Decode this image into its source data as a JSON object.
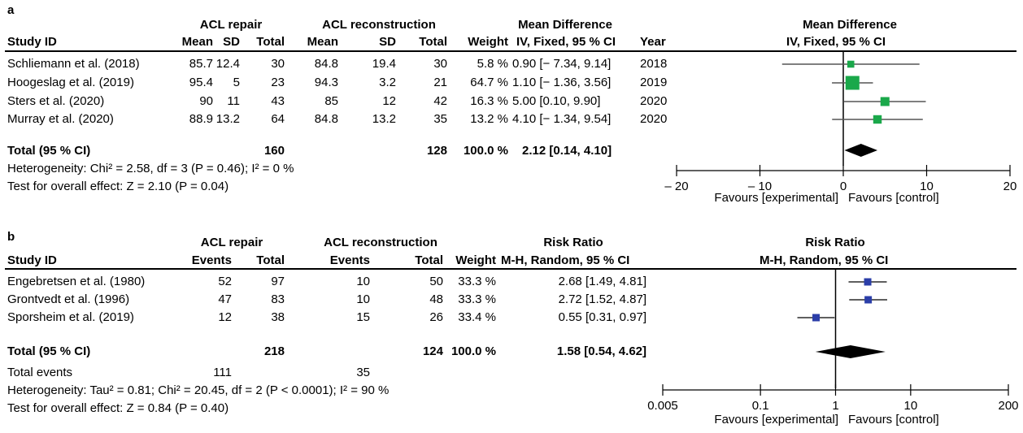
{
  "chart_data": [
    {
      "type": "forest",
      "panel_label": "a",
      "group_headers": [
        "ACL repair",
        "ACL reconstruction",
        "Mean Difference",
        "Mean Difference"
      ],
      "stat_sub": "IV, Fixed, 95 % CI",
      "columns": [
        "Study ID",
        "Mean",
        "SD",
        "Total",
        "Mean",
        "SD",
        "Total",
        "Weight",
        "IV, Fixed, 95 % CI",
        "Year"
      ],
      "studies": [
        {
          "name": "Schliemann et al. (2018)",
          "m1": "85.7",
          "sd1": "12.4",
          "n1": "30",
          "m2": "84.8",
          "sd2": "19.4",
          "n2": "30",
          "weight": "5.8 %",
          "ci_text": "0.90 [− 7.34, 9.14]",
          "year": "2018",
          "est": 0.9,
          "lo": -7.34,
          "hi": 9.14,
          "w": 5.8
        },
        {
          "name": "Hoogeslag et al. (2019)",
          "m1": "95.4",
          "sd1": "5",
          "n1": "23",
          "m2": "94.3",
          "sd2": "3.2",
          "n2": "21",
          "weight": "64.7 %",
          "ci_text": "1.10 [− 1.36, 3.56]",
          "year": "2019",
          "est": 1.1,
          "lo": -1.36,
          "hi": 3.56,
          "w": 64.7
        },
        {
          "name": "Sters et al. (2020)",
          "m1": "90",
          "sd1": "11",
          "n1": "43",
          "m2": "85",
          "sd2": "12",
          "n2": "42",
          "weight": "16.3 %",
          "ci_text": "5.00 [0.10, 9.90]",
          "year": "2020",
          "est": 5.0,
          "lo": 0.1,
          "hi": 9.9,
          "w": 16.3
        },
        {
          "name": "Murray et al. (2020)",
          "m1": "88.9",
          "sd1": "13.2",
          "n1": "64",
          "m2": "84.8",
          "sd2": "13.2",
          "n2": "35",
          "weight": "13.2 %",
          "ci_text": "4.10 [− 1.34, 9.54]",
          "year": "2020",
          "est": 4.1,
          "lo": -1.34,
          "hi": 9.54,
          "w": 13.2
        }
      ],
      "total": {
        "label": "Total (95 % CI)",
        "n1": "160",
        "n2": "128",
        "weight": "100.0 %",
        "ci_text": "2.12 [0.14, 4.10]",
        "est": 2.12,
        "lo": 0.14,
        "hi": 4.1
      },
      "heterogeneity": "Heterogeneity: Chi² = 2.58, df = 3 (P = 0.46); I² = 0 %",
      "overall_effect": "Test for overall effect: Z = 2.10 (P = 0.04)",
      "axis": {
        "scale": "linear",
        "min": -20,
        "max": 20,
        "ticks": [
          -20,
          -10,
          0,
          10,
          20
        ],
        "tick_labels": [
          "– 20",
          "– 10",
          "0",
          "10",
          "20"
        ]
      },
      "favours_left": "Favours [experimental]",
      "favours_right": "Favours [control]",
      "marker_color": "#1aa84a"
    },
    {
      "type": "forest",
      "panel_label": "b",
      "group_headers": [
        "ACL repair",
        "ACL reconstruction",
        "Risk Ratio",
        "Risk Ratio"
      ],
      "stat_sub": "M-H, Random, 95 % CI",
      "columns": [
        "Study ID",
        "Events",
        "Total",
        "Events",
        "Total",
        "Weight",
        "M-H, Random, 95 % CI"
      ],
      "studies": [
        {
          "name": "Engebretsen et al. (1980)",
          "e1": "52",
          "n1": "97",
          "e2": "10",
          "n2": "50",
          "weight": "33.3 %",
          "ci_text": "2.68 [1.49, 4.81]",
          "est": 2.68,
          "lo": 1.49,
          "hi": 4.81
        },
        {
          "name": "Grontvedt et al. (1996)",
          "e1": "47",
          "n1": "83",
          "e2": "10",
          "n2": "48",
          "weight": "33.3 %",
          "ci_text": "2.72 [1.52, 4.87]",
          "est": 2.72,
          "lo": 1.52,
          "hi": 4.87
        },
        {
          "name": "Sporsheim et al. (2019)",
          "e1": "12",
          "n1": "38",
          "e2": "15",
          "n2": "26",
          "weight": "33.4 %",
          "ci_text": "0.55 [0.31, 0.97]",
          "est": 0.55,
          "lo": 0.31,
          "hi": 0.97
        }
      ],
      "total": {
        "label": "Total (95 % CI)",
        "n1": "218",
        "n2": "124",
        "weight": "100.0 %",
        "ci_text": "1.58 [0.54, 4.62]",
        "est": 1.58,
        "lo": 0.54,
        "hi": 4.62
      },
      "total_events": {
        "label": "Total events",
        "e1": "111",
        "e2": "35"
      },
      "heterogeneity": "Heterogeneity: Tau² = 0.81; Chi² = 20.45, df = 2 (P < 0.0001); I² = 90 %",
      "overall_effect": "Test for overall effect: Z = 0.84 (P = 0.40)",
      "axis": {
        "scale": "log",
        "min": 0.005,
        "max": 200,
        "ticks": [
          0.005,
          0.1,
          1,
          10,
          200
        ],
        "tick_labels": [
          "0.005",
          "0.1",
          "1",
          "10",
          "200"
        ]
      },
      "favours_left": "Favours [experimental]",
      "favours_right": "Favours [control]",
      "marker_color": "#2b3ea8"
    }
  ]
}
